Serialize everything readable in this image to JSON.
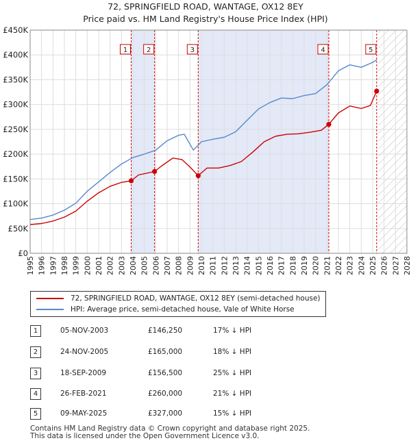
{
  "title_line1": "72, SPRINGFIELD ROAD, WANTAGE, OX12 8EY",
  "title_line2": "Price paid vs. HM Land Registry's House Price Index (HPI)",
  "chart_data": {
    "type": "line",
    "title": "Price paid vs. HM Land Registry's House Price Index (HPI)",
    "xlabel": "",
    "ylabel": "",
    "xlim": [
      1995,
      2028
    ],
    "ylim": [
      0,
      450000
    ],
    "yticks": [
      0,
      50000,
      100000,
      150000,
      200000,
      250000,
      300000,
      350000,
      400000,
      450000
    ],
    "ytick_labels": [
      "£0",
      "£50K",
      "£100K",
      "£150K",
      "£200K",
      "£250K",
      "£300K",
      "£350K",
      "£400K",
      "£450K"
    ],
    "xticks": [
      1995,
      1996,
      1997,
      1998,
      1999,
      2000,
      2001,
      2002,
      2003,
      2004,
      2005,
      2006,
      2007,
      2008,
      2009,
      2010,
      2011,
      2012,
      2013,
      2014,
      2015,
      2016,
      2017,
      2018,
      2019,
      2020,
      2021,
      2022,
      2023,
      2024,
      2025,
      2026,
      2027,
      2028
    ],
    "grid": true,
    "projection_start": 2025.5,
    "series": [
      {
        "name": "72, SPRINGFIELD ROAD, WANTAGE, OX12 8EY (semi-detached house)",
        "color": "#cc0000",
        "x": [
          1995.0,
          1996.0,
          1997.0,
          1998.0,
          1999.0,
          2000.0,
          2001.0,
          2002.0,
          2003.0,
          2003.85,
          2004.5,
          2005.9,
          2006.5,
          2007.5,
          2008.3,
          2009.0,
          2009.72,
          2010.5,
          2011.5,
          2012.5,
          2013.5,
          2014.5,
          2015.5,
          2016.5,
          2017.5,
          2018.5,
          2019.5,
          2020.5,
          2021.16,
          2022.0,
          2023.0,
          2024.0,
          2024.8,
          2025.35
        ],
        "y": [
          58000,
          60000,
          65000,
          73000,
          85000,
          105000,
          122000,
          135000,
          143000,
          146250,
          158000,
          165000,
          176000,
          192000,
          189000,
          174000,
          156500,
          172000,
          172000,
          177000,
          185000,
          204000,
          225000,
          236000,
          240000,
          241000,
          244000,
          248000,
          260000,
          283000,
          297000,
          292000,
          298000,
          327000
        ]
      },
      {
        "name": "HPI: Average price, semi-detached house, Vale of White Horse",
        "color": "#5588cc",
        "x": [
          1995.0,
          1996.0,
          1997.0,
          1998.0,
          1999.0,
          2000.0,
          2001.0,
          2002.0,
          2003.0,
          2004.0,
          2005.0,
          2006.0,
          2007.0,
          2008.0,
          2008.5,
          2009.3,
          2010.0,
          2011.0,
          2012.0,
          2013.0,
          2014.0,
          2015.0,
          2016.0,
          2017.0,
          2018.0,
          2019.0,
          2020.0,
          2021.0,
          2022.0,
          2023.0,
          2024.0,
          2025.0,
          2025.35
        ],
        "y": [
          68000,
          71000,
          77000,
          87000,
          101000,
          125000,
          144000,
          163000,
          180000,
          193000,
          200000,
          208000,
          227000,
          238000,
          240000,
          208000,
          225000,
          230000,
          234000,
          245000,
          268000,
          291000,
          304000,
          313000,
          312000,
          318000,
          322000,
          340000,
          368000,
          380000,
          375000,
          385000,
          390000
        ]
      }
    ],
    "annotations": [
      {
        "label": "1",
        "x": 2003.85,
        "y": 146250
      },
      {
        "label": "2",
        "x": 2005.9,
        "y": 165000
      },
      {
        "label": "3",
        "x": 2009.72,
        "y": 156500
      },
      {
        "label": "4",
        "x": 2021.16,
        "y": 260000
      },
      {
        "label": "5",
        "x": 2025.35,
        "y": 327000
      }
    ],
    "shaded_spans": [
      [
        2003.85,
        2005.9
      ],
      [
        2009.72,
        2021.16
      ]
    ]
  },
  "legend": {
    "property_label": "72, SPRINGFIELD ROAD, WANTAGE, OX12 8EY (semi-detached house)",
    "hpi_label": "HPI: Average price, semi-detached house, Vale of White Horse"
  },
  "transactions": [
    {
      "num": "1",
      "date": "05-NOV-2003",
      "price": "£146,250",
      "hpi": "17% ↓ HPI"
    },
    {
      "num": "2",
      "date": "24-NOV-2005",
      "price": "£165,000",
      "hpi": "18% ↓ HPI"
    },
    {
      "num": "3",
      "date": "18-SEP-2009",
      "price": "£156,500",
      "hpi": "25% ↓ HPI"
    },
    {
      "num": "4",
      "date": "26-FEB-2021",
      "price": "£260,000",
      "hpi": "21% ↓ HPI"
    },
    {
      "num": "5",
      "date": "09-MAY-2025",
      "price": "£327,000",
      "hpi": "15% ↓ HPI"
    }
  ],
  "footer_line1": "Contains HM Land Registry data © Crown copyright and database right 2025.",
  "footer_line2": "This data is licensed under the Open Government Licence v3.0."
}
